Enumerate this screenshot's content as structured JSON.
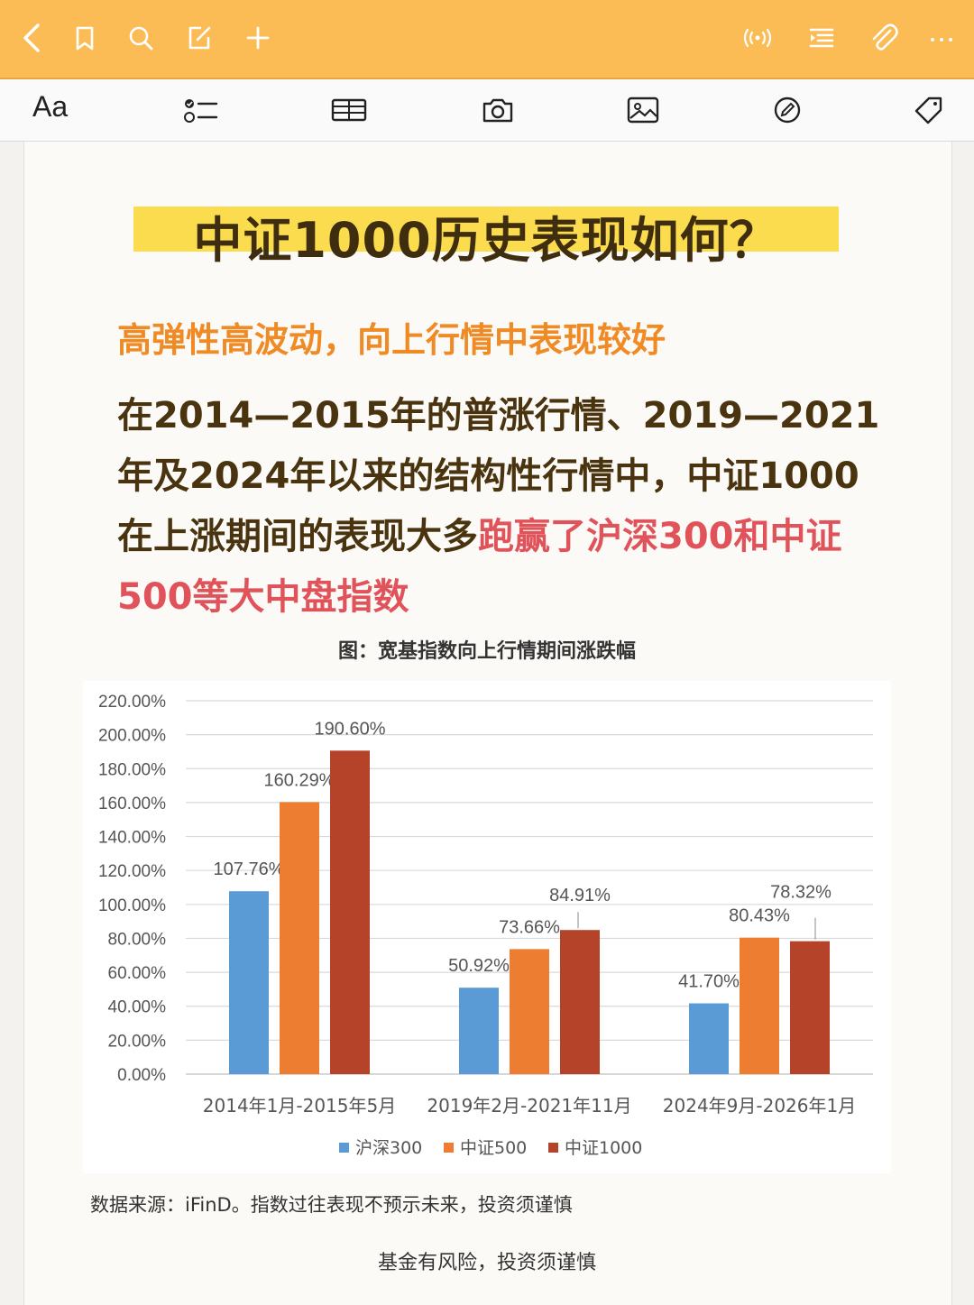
{
  "toolbar": {
    "icons": [
      "back-icon",
      "bookmark-icon",
      "search-icon",
      "edit-icon",
      "add-icon",
      "broadcast-icon",
      "outline-icon",
      "attach-icon",
      "more-icon"
    ]
  },
  "format_bar": {
    "text_style_label": "Aa",
    "icons": [
      "checklist-icon",
      "table-icon",
      "camera-icon",
      "image-icon",
      "draw-icon",
      "tag-icon"
    ]
  },
  "note": {
    "title": "中证1000历史表现如何？",
    "subtitle": "高弹性高波动，向上行情中表现较好",
    "body_part1": "在2014—2015年的普涨行情、2019—2021年及2024年以来的结构性行情中，中证1000在上涨期间的表现大多",
    "body_highlight": "跑赢了沪深300和中证500等大中盘指数",
    "figure_caption": "图：宽基指数向上行情期间涨跌幅",
    "source_note": "数据来源：iFinD。指数过往表现不预示未来，投资须谨慎",
    "footer": "基金有风险，投资须谨慎"
  },
  "colors": {
    "accent": "#fbbc55",
    "series_blue": "#5b9bd5",
    "series_orange": "#ed7d31",
    "series_red": "#b5432a"
  },
  "chart_data": {
    "type": "bar",
    "categories": [
      "2014年1月-2015年5月",
      "2019年2月-2021年11月",
      "2024年9月-2026年1月"
    ],
    "series": [
      {
        "name": "沪深300",
        "values": [
          107.76,
          50.92,
          41.7
        ],
        "labels": [
          "107.76%",
          "50.92%",
          "41.70%"
        ]
      },
      {
        "name": "中证500",
        "values": [
          160.29,
          73.66,
          80.43
        ],
        "labels": [
          "160.29%",
          "73.66%",
          "80.43%"
        ]
      },
      {
        "name": "中证1000",
        "values": [
          190.6,
          84.91,
          78.32
        ],
        "labels": [
          "190.60%",
          "84.91%",
          "78.32%"
        ]
      }
    ],
    "ylim": [
      0,
      220
    ],
    "yticks": [
      "0.00%",
      "20.00%",
      "40.00%",
      "60.00%",
      "80.00%",
      "100.00%",
      "120.00%",
      "140.00%",
      "160.00%",
      "180.00%",
      "200.00%",
      "220.00%"
    ],
    "grid": true,
    "legend": "bottom"
  }
}
